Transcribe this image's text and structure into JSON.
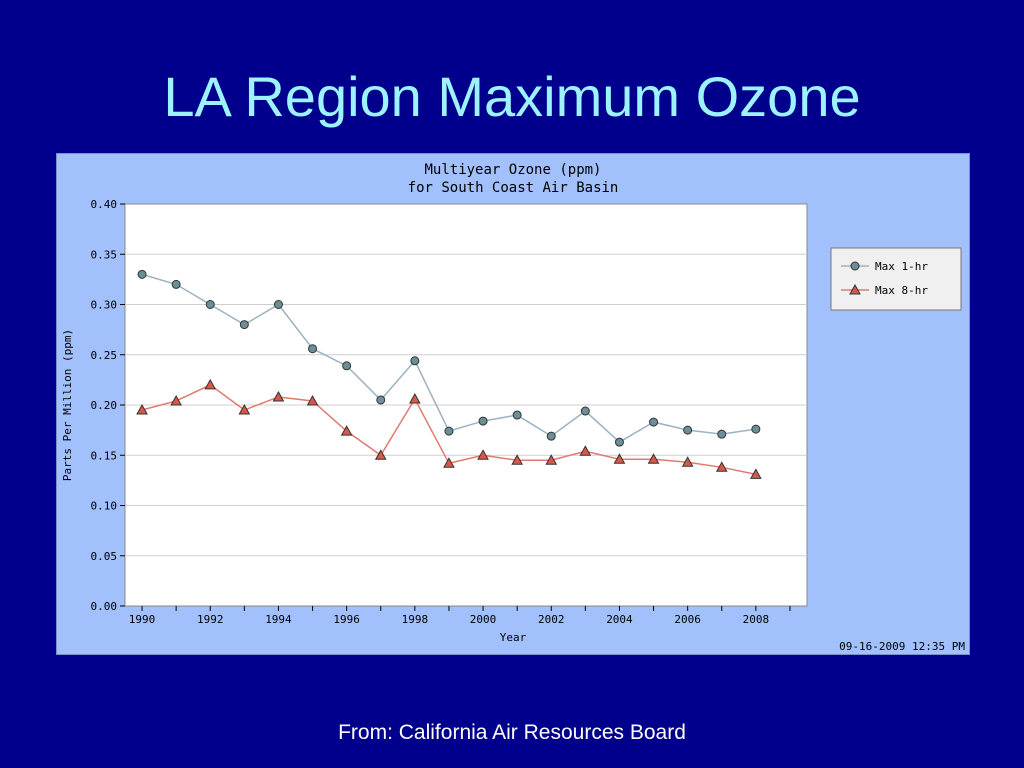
{
  "slide": {
    "title": "LA Region Maximum Ozone",
    "footer": "From:  California Air Resources Board"
  },
  "chart": {
    "timestamp": "09-16-2009  12:35 PM"
  },
  "colors": {
    "background": "#00008c",
    "title_text": "#9cf3ff",
    "panel": "#a1c0fc",
    "plot_bg": "#ffffff",
    "series_1hr_line": "#9bb3c0",
    "series_1hr_marker": "#6b8f98",
    "series_8hr_line": "#e07a70",
    "series_8hr_marker": "#d9574a"
  },
  "chart_data": {
    "type": "line",
    "title": "Multiyear Ozone (ppm)",
    "subtitle": "for South Coast Air Basin",
    "xlabel": "Year",
    "ylabel": "Parts Per Million (ppm)",
    "x": [
      1990,
      1991,
      1992,
      1993,
      1994,
      1995,
      1996,
      1997,
      1998,
      1999,
      2000,
      2001,
      2002,
      2003,
      2004,
      2005,
      2006,
      2007,
      2008
    ],
    "xticks": [
      "1990",
      "1992",
      "1994",
      "1996",
      "1998",
      "2000",
      "2002",
      "2004",
      "2006",
      "2008"
    ],
    "yticks": [
      "0.00",
      "0.05",
      "0.10",
      "0.15",
      "0.20",
      "0.25",
      "0.30",
      "0.35",
      "0.40"
    ],
    "ylim": [
      0,
      0.4
    ],
    "xlim": [
      1989.5,
      2009.5
    ],
    "grid": true,
    "legend_position": "right",
    "series": [
      {
        "name": "Max 1-hr",
        "marker": "circle",
        "values": [
          0.33,
          0.32,
          0.3,
          0.28,
          0.3,
          0.256,
          0.239,
          0.205,
          0.244,
          0.174,
          0.184,
          0.19,
          0.169,
          0.194,
          0.163,
          0.183,
          0.175,
          0.171,
          0.176
        ]
      },
      {
        "name": "Max 8-hr",
        "marker": "triangle",
        "values": [
          0.195,
          0.204,
          0.22,
          0.195,
          0.208,
          0.204,
          0.174,
          0.15,
          0.206,
          0.142,
          0.15,
          0.145,
          0.145,
          0.154,
          0.146,
          0.146,
          0.143,
          0.138,
          0.131
        ]
      }
    ]
  }
}
